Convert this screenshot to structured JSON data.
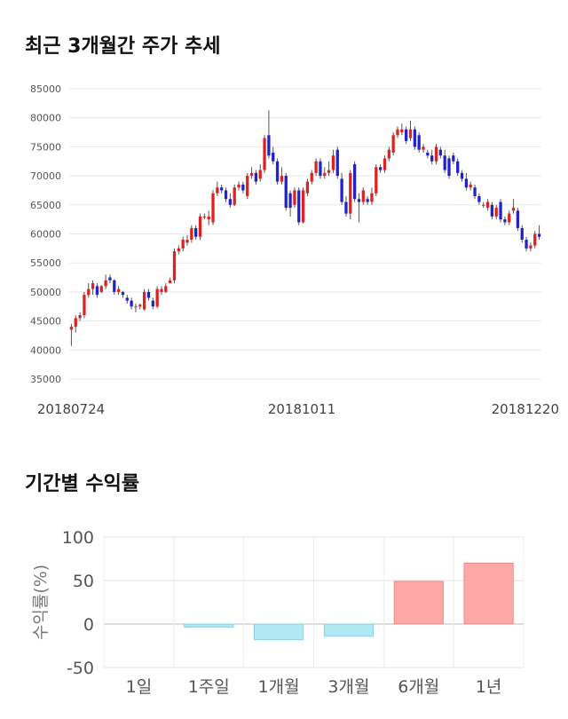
{
  "titles": {
    "price_trend": "최근 3개월간 주가 추세",
    "period_returns": "기간별 수익률"
  },
  "chart_data": [
    {
      "type": "candlestick",
      "title": "최근 3개월간 주가 추세",
      "ylim": [
        35000,
        85000
      ],
      "yticks": [
        35000,
        40000,
        45000,
        50000,
        55000,
        60000,
        65000,
        70000,
        75000,
        80000,
        85000
      ],
      "x_tick_labels": [
        "20180724",
        "20181011",
        "20181220"
      ],
      "grid": "horizontal",
      "up_color": "#dd2222",
      "down_color": "#2222cc",
      "candles": [
        [
          43500,
          44000,
          40700,
          44500
        ],
        [
          44000,
          45500,
          43000,
          46000
        ],
        [
          45500,
          46000,
          45000,
          46500
        ],
        [
          46000,
          49500,
          45500,
          50000
        ],
        [
          49500,
          50500,
          49000,
          51500
        ],
        [
          50500,
          51500,
          49500,
          52000
        ],
        [
          51000,
          49500,
          49000,
          51500
        ],
        [
          50000,
          51000,
          49800,
          51200
        ],
        [
          51000,
          52000,
          50500,
          53000
        ],
        [
          52500,
          52000,
          51500,
          53000
        ],
        [
          52000,
          50000,
          49500,
          52200
        ],
        [
          50000,
          50500,
          49500,
          51000
        ],
        [
          50000,
          49500,
          49000,
          50200
        ],
        [
          49000,
          48500,
          48000,
          49500
        ],
        [
          48500,
          47500,
          47000,
          49000
        ],
        [
          47500,
          47500,
          46500,
          48000
        ],
        [
          47500,
          47800,
          47000,
          48000
        ],
        [
          47000,
          50000,
          46800,
          50500
        ],
        [
          50000,
          49000,
          48500,
          50500
        ],
        [
          48500,
          47500,
          47000,
          49000
        ],
        [
          47500,
          50500,
          47200,
          51000
        ],
        [
          50000,
          50500,
          49500,
          51000
        ],
        [
          50000,
          51000,
          49800,
          51500
        ],
        [
          51500,
          52000,
          51500,
          52500
        ],
        [
          52000,
          57000,
          51500,
          57500
        ],
        [
          57000,
          57500,
          56500,
          58000
        ],
        [
          57500,
          59000,
          57000,
          59500
        ],
        [
          58500,
          59000,
          58000,
          59800
        ],
        [
          59000,
          61000,
          58500,
          61500
        ],
        [
          61000,
          59500,
          59000,
          61500
        ],
        [
          59500,
          63000,
          59000,
          63500
        ],
        [
          63000,
          63000,
          62500,
          63500
        ],
        [
          62500,
          63000,
          61500,
          64000
        ],
        [
          62000,
          67000,
          61500,
          67500
        ],
        [
          67000,
          68000,
          66500,
          69000
        ],
        [
          68000,
          67500,
          67000,
          68500
        ],
        [
          67500,
          66000,
          65500,
          68000
        ],
        [
          66000,
          65000,
          64500,
          67000
        ],
        [
          65000,
          68000,
          64800,
          68500
        ],
        [
          68000,
          68500,
          67500,
          69000
        ],
        [
          68500,
          67500,
          67000,
          69000
        ],
        [
          66500,
          70000,
          66000,
          70500
        ],
        [
          70000,
          70500,
          69500,
          71500
        ],
        [
          70500,
          69000,
          68500,
          71000
        ],
        [
          69500,
          71000,
          69000,
          72000
        ],
        [
          71000,
          76500,
          70500,
          77000
        ],
        [
          77000,
          73500,
          73000,
          81300
        ],
        [
          74000,
          72500,
          72000,
          75000
        ],
        [
          72500,
          69000,
          68500,
          73000
        ],
        [
          69000,
          70000,
          68500,
          71500
        ],
        [
          70000,
          64500,
          64000,
          70500
        ],
        [
          67000,
          64500,
          63000,
          67500
        ],
        [
          65000,
          67500,
          64500,
          68000
        ],
        [
          67500,
          62000,
          61500,
          68000
        ],
        [
          62000,
          67500,
          61800,
          68000
        ],
        [
          67000,
          69000,
          66500,
          69500
        ],
        [
          69000,
          70500,
          68500,
          71000
        ],
        [
          70500,
          72500,
          70000,
          73000
        ],
        [
          72500,
          70000,
          69500,
          73000
        ],
        [
          70000,
          70500,
          69500,
          71500
        ],
        [
          70500,
          71000,
          70000,
          72500
        ],
        [
          71000,
          73500,
          70500,
          74500
        ],
        [
          74500,
          70000,
          69500,
          75000
        ],
        [
          69500,
          65500,
          65000,
          70500
        ],
        [
          65500,
          63500,
          63000,
          66500
        ],
        [
          63500,
          70500,
          62500,
          71000
        ],
        [
          72000,
          66000,
          65500,
          72500
        ],
        [
          66000,
          65500,
          62000,
          67000
        ],
        [
          65500,
          67500,
          65000,
          68000
        ],
        [
          66000,
          65500,
          65000,
          66500
        ],
        [
          65500,
          67000,
          65000,
          68000
        ],
        [
          67000,
          71500,
          66500,
          72000
        ],
        [
          71500,
          71000,
          70500,
          72000
        ],
        [
          71000,
          73000,
          70500,
          73500
        ],
        [
          73000,
          74500,
          72500,
          75000
        ],
        [
          74000,
          77000,
          73500,
          77500
        ],
        [
          77000,
          78000,
          76500,
          78500
        ],
        [
          77500,
          78000,
          77000,
          79000
        ],
        [
          78000,
          76000,
          75500,
          78500
        ],
        [
          76500,
          78000,
          76000,
          79500
        ],
        [
          78000,
          75000,
          74500,
          78500
        ],
        [
          77000,
          74500,
          74000,
          77500
        ],
        [
          74500,
          75000,
          74000,
          75500
        ],
        [
          74000,
          73500,
          73000,
          74500
        ],
        [
          73500,
          72500,
          72000,
          74500
        ],
        [
          72500,
          75000,
          72000,
          75500
        ],
        [
          74500,
          73500,
          73000,
          75000
        ],
        [
          73500,
          71000,
          70500,
          74500
        ],
        [
          73000,
          70000,
          69500,
          73500
        ],
        [
          73500,
          72500,
          72000,
          74000
        ],
        [
          72500,
          70500,
          70000,
          73000
        ],
        [
          70500,
          69500,
          69000,
          71000
        ],
        [
          69500,
          68000,
          67500,
          70500
        ],
        [
          68000,
          68500,
          67500,
          69000
        ],
        [
          68000,
          66500,
          66000,
          68500
        ],
        [
          66500,
          65500,
          65000,
          67000
        ],
        [
          65000,
          65000,
          64500,
          65500
        ],
        [
          64500,
          65500,
          64000,
          66000
        ],
        [
          65000,
          63000,
          62500,
          65500
        ],
        [
          63000,
          64500,
          62500,
          65000
        ],
        [
          65500,
          62500,
          62000,
          66000
        ],
        [
          62500,
          62000,
          61500,
          63000
        ],
        [
          62000,
          63500,
          61500,
          64000
        ],
        [
          64000,
          64500,
          63500,
          66000
        ],
        [
          64000,
          61000,
          60500,
          64500
        ],
        [
          61000,
          59000,
          58500,
          61500
        ],
        [
          59000,
          57500,
          57000,
          59500
        ],
        [
          57500,
          58000,
          57000,
          58500
        ],
        [
          58000,
          60000,
          57500,
          60500
        ],
        [
          60000,
          59500,
          59000,
          61500
        ]
      ]
    },
    {
      "type": "bar",
      "title": "기간별 수익률",
      "categories": [
        "1일",
        "1주일",
        "1개월",
        "3개월",
        "6개월",
        "1년"
      ],
      "values": [
        0,
        -3.5,
        -18,
        -14,
        49,
        70
      ],
      "ylabel": "수익률(%)",
      "ylim": [
        -50,
        100
      ],
      "yticks": [
        -50,
        0,
        50,
        100
      ],
      "grid": true,
      "positive_color": "#ffa8a8",
      "negative_color": "#b0e8f4"
    }
  ]
}
